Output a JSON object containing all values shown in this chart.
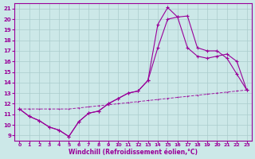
{
  "xlabel": "Windchill (Refroidissement éolien,°C)",
  "xlim": [
    -0.5,
    23.5
  ],
  "ylim": [
    8.5,
    21.5
  ],
  "xticks": [
    0,
    1,
    2,
    3,
    4,
    5,
    6,
    7,
    8,
    9,
    10,
    11,
    12,
    13,
    14,
    15,
    16,
    17,
    18,
    19,
    20,
    21,
    22,
    23
  ],
  "yticks": [
    9,
    10,
    11,
    12,
    13,
    14,
    15,
    16,
    17,
    18,
    19,
    20,
    21
  ],
  "bg_color": "#cce8e8",
  "line_color": "#990099",
  "grid_color": "#aacccc",
  "line1_y": [
    11.5,
    10.8,
    10.4,
    9.8,
    9.5,
    8.9,
    10.3,
    11.1,
    11.3,
    12.0,
    12.5,
    13.0,
    13.2,
    14.2,
    19.5,
    21.1,
    20.2,
    20.3,
    17.3,
    17.0,
    17.0,
    16.3,
    14.8,
    13.3
  ],
  "line2_y": [
    11.5,
    10.8,
    10.4,
    9.8,
    9.5,
    8.9,
    10.3,
    11.1,
    11.3,
    12.0,
    12.5,
    13.0,
    13.2,
    14.2,
    17.3,
    20.0,
    20.2,
    17.3,
    16.5,
    16.3,
    16.5,
    16.7,
    16.0,
    13.3
  ],
  "line3_y": [
    11.5,
    11.5,
    11.5,
    11.5,
    11.5,
    11.5,
    11.6,
    11.7,
    11.8,
    11.9,
    12.0,
    12.1,
    12.2,
    12.3,
    12.4,
    12.5,
    12.6,
    12.7,
    12.8,
    12.9,
    13.0,
    13.1,
    13.2,
    13.3
  ]
}
